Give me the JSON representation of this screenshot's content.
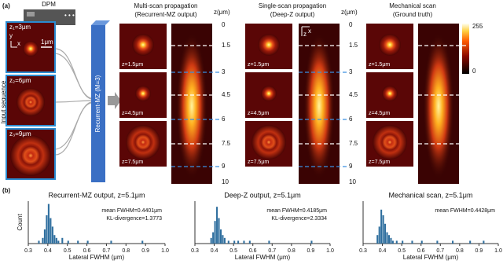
{
  "panel_a": {
    "label": "(a)",
    "device": "DPM",
    "input_label": "Input sequence",
    "inputs": [
      "z₁=3μm",
      "z₂=6μm",
      "z₃=9μm"
    ],
    "scale_bar": "1μm",
    "input_axes": [
      "y",
      "x"
    ],
    "network": "Recurrent-MZ (M=3)",
    "columns": [
      {
        "title": [
          "Multi-scan propagation",
          "(Recurrent-MZ output)"
        ],
        "planes": [
          "z=1.5μm",
          "z=4.5μm",
          "z=7.5μm"
        ]
      },
      {
        "title": [
          "Single-scan propagation",
          "(Deep-Z output)"
        ],
        "planes": [
          "z=1.5μm",
          "z=4.5μm",
          "z=7.5μm"
        ]
      },
      {
        "title": [
          "Mechanical scan",
          "(Ground truth)"
        ],
        "planes": [
          "z=1.5μm",
          "z=4.5μm",
          "z=7.5μm"
        ]
      }
    ],
    "xz_axes": [
      "z",
      "x"
    ],
    "z_axis": {
      "title": "z(μm)",
      "labels": [
        "0",
        "1.5",
        "3",
        "4.5",
        "6",
        "7.5",
        "9",
        "10"
      ]
    },
    "colorbar": [
      "255",
      "0"
    ]
  },
  "panel_b": {
    "label": "(b)"
  },
  "chart_data": [
    {
      "type": "histogram",
      "title": "Recurrent-MZ output, z=5.1μm",
      "x_label": "Lateral FWHM (μm)",
      "y_label": "Count",
      "annotations": [
        "mean FWHM=0.4401μm",
        "KL-divergence=1.3773"
      ],
      "color": "#2e6e9e",
      "bins": [
        0.3,
        0.31,
        0.32,
        0.33,
        0.34,
        0.35,
        0.36,
        0.37,
        0.38,
        0.39,
        0.4,
        0.41,
        0.42,
        0.43,
        0.44,
        0.45,
        0.46,
        0.47,
        0.48,
        0.49,
        0.5,
        0.51,
        0.52,
        0.53,
        0.54,
        0.55,
        0.56,
        0.57,
        0.58,
        0.59,
        0.6,
        0.61,
        0.62,
        0.63,
        0.64,
        0.65,
        0.66,
        0.67,
        0.68,
        0.69,
        0.7,
        0.71,
        0.72,
        0.73,
        0.74,
        0.75,
        0.76,
        0.77,
        0.78,
        0.79,
        0.8,
        0.81,
        0.82,
        0.83,
        0.84,
        0.85,
        0.86,
        0.87,
        0.88,
        0.89,
        0.9,
        0.91,
        0.92,
        0.93,
        0.94,
        0.95,
        0.96,
        0.97,
        0.98,
        0.99,
        1.0
      ],
      "counts": [
        0,
        0,
        0,
        0,
        0,
        1,
        0,
        2,
        5,
        10,
        14,
        9,
        6,
        3,
        2,
        1,
        0,
        2,
        0,
        0,
        1,
        0,
        0,
        0,
        0,
        1,
        0,
        0,
        0,
        0,
        1,
        0,
        0,
        0,
        0,
        0,
        0,
        0,
        0,
        0,
        0,
        0,
        1,
        0,
        0,
        0,
        0,
        0,
        0,
        0,
        0,
        0,
        0,
        0,
        0,
        0,
        0,
        0,
        1,
        0,
        0,
        0,
        0,
        0,
        0,
        0,
        0,
        0,
        0,
        0
      ],
      "xlim": [
        0.3,
        1.0
      ],
      "xticks": [
        0.3,
        0.4,
        0.5,
        0.6,
        0.7,
        0.8,
        0.9,
        {
          "value": 1,
          "label": "1.0"
        }
      ],
      "ylim": [
        0,
        15
      ]
    },
    {
      "type": "histogram",
      "title": "Deep-Z output, z=5.1μm",
      "x_label": "Lateral FWHM (μm)",
      "annotations": [
        "mean FWHM=0.4185μm",
        "KL-divergence=2.3334"
      ],
      "color": "#2e6e9e",
      "bins": [
        0.3,
        0.31,
        0.32,
        0.33,
        0.34,
        0.35,
        0.36,
        0.37,
        0.38,
        0.39,
        0.4,
        0.41,
        0.42,
        0.43,
        0.44,
        0.45,
        0.46,
        0.47,
        0.48,
        0.49,
        0.5,
        0.51,
        0.52,
        0.53,
        0.54,
        0.55,
        0.56,
        0.57,
        0.58,
        0.59,
        0.6,
        0.61,
        0.62,
        0.63,
        0.64,
        0.65,
        0.66,
        0.67,
        0.68,
        0.69,
        0.7,
        0.71,
        0.72,
        0.73,
        0.74,
        0.75,
        0.76,
        0.77,
        0.78,
        0.79,
        0.8,
        0.81,
        0.82,
        0.83,
        0.84,
        0.85,
        0.86,
        0.87,
        0.88,
        0.89,
        0.9,
        0.91,
        0.92,
        0.93,
        0.94,
        0.95,
        0.96,
        0.97,
        0.98,
        0.99,
        1.0
      ],
      "counts": [
        0,
        0,
        0,
        0,
        0,
        0,
        0,
        0,
        2,
        4,
        8,
        13,
        9,
        5,
        3,
        2,
        0,
        1,
        0,
        0,
        1,
        0,
        1,
        0,
        0,
        1,
        0,
        0,
        1,
        0,
        0,
        0,
        0,
        0,
        0,
        0,
        0,
        0,
        1,
        0,
        0,
        0,
        0,
        0,
        0,
        0,
        0,
        0,
        0,
        0,
        0,
        0,
        0,
        0,
        0,
        0,
        0,
        0,
        0,
        0,
        1,
        0,
        0,
        0,
        0,
        0,
        0,
        0,
        0,
        0
      ],
      "xlim": [
        0.3,
        1.0
      ],
      "xticks": [
        0.3,
        0.4,
        0.5,
        0.6,
        0.7,
        0.8,
        0.9,
        {
          "value": 1,
          "label": "1.0"
        }
      ],
      "ylim": [
        0,
        15
      ]
    },
    {
      "type": "histogram",
      "title": "Mechanical scan, z=5.1μm",
      "x_label": "Lateral FWHM (μm)",
      "annotations": [
        "mean FWHM=0.4428μm"
      ],
      "color": "#2e6e9e",
      "bins": [
        0.3,
        0.31,
        0.32,
        0.33,
        0.34,
        0.35,
        0.36,
        0.37,
        0.38,
        0.39,
        0.4,
        0.41,
        0.42,
        0.43,
        0.44,
        0.45,
        0.46,
        0.47,
        0.48,
        0.49,
        0.5,
        0.51,
        0.52,
        0.53,
        0.54,
        0.55,
        0.56,
        0.57,
        0.58,
        0.59,
        0.6,
        0.61,
        0.62,
        0.63,
        0.64,
        0.65,
        0.66,
        0.67,
        0.68,
        0.69,
        0.7,
        0.71,
        0.72,
        0.73,
        0.74,
        0.75,
        0.76,
        0.77,
        0.78,
        0.79,
        0.8,
        0.81,
        0.82,
        0.83,
        0.84,
        0.85,
        0.86,
        0.87,
        0.88,
        0.89,
        0.9,
        0.91,
        0.92,
        0.93,
        0.94,
        0.95,
        0.96,
        0.97,
        0.98,
        0.99,
        1.0
      ],
      "counts": [
        0,
        0,
        0,
        0,
        0,
        0,
        0,
        3,
        6,
        12,
        10,
        7,
        4,
        3,
        2,
        1,
        0,
        1,
        0,
        0,
        1,
        0,
        0,
        0,
        0,
        1,
        0,
        0,
        0,
        0,
        1,
        0,
        0,
        0,
        0,
        0,
        0,
        0,
        1,
        0,
        0,
        0,
        0,
        0,
        0,
        0,
        1,
        0,
        0,
        0,
        0,
        0,
        0,
        0,
        0,
        1,
        0,
        0,
        0,
        0,
        0,
        0,
        1,
        0,
        0,
        0,
        0,
        0,
        0,
        0
      ],
      "xlim": [
        0.3,
        1.0
      ],
      "xticks": [
        0.3,
        0.4,
        0.5,
        0.6,
        0.7,
        0.8,
        0.9,
        {
          "value": 1,
          "label": "1.0"
        }
      ],
      "ylim": [
        0,
        15
      ]
    }
  ]
}
